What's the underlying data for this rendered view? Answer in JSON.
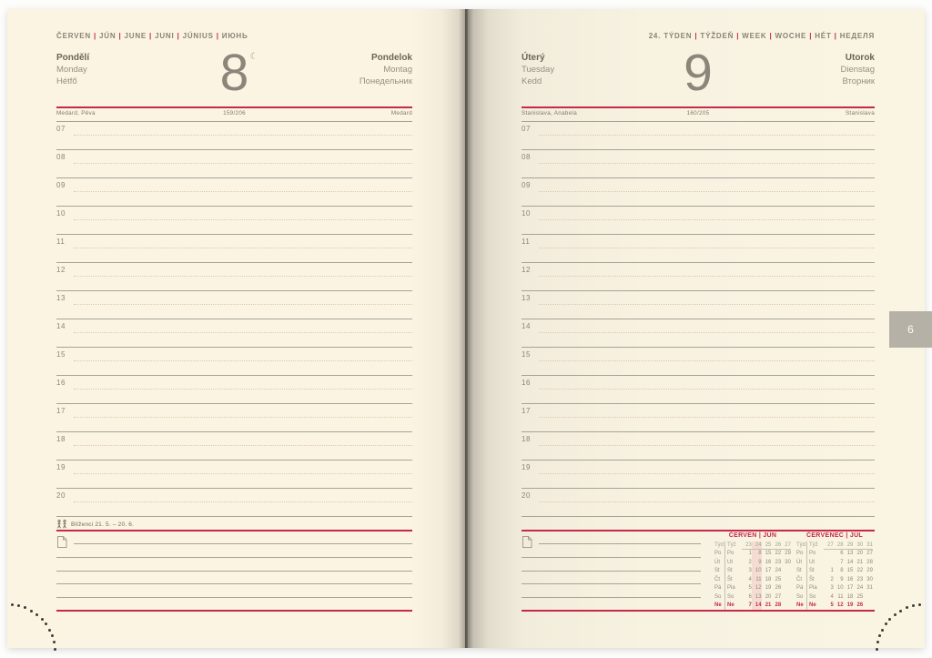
{
  "left_page": {
    "month_header_parts": [
      "ČERVEN",
      "JÚN",
      "JUNE",
      "JUNI",
      "JÚNIUS",
      "ИЮНЬ"
    ],
    "day": {
      "names_left": [
        "Pondělí",
        "Monday",
        "Hétfő"
      ],
      "number": "8",
      "moon_symbol": "☾",
      "names_right": [
        "Pondelok",
        "Montag",
        "Понедельник"
      ]
    },
    "nameday": {
      "left": "Medard, Pěva",
      "center": "159/206",
      "right": "Medard"
    },
    "zodiac": {
      "sign": "gemini",
      "label": "Blíženci 21. 5. – 20. 6."
    }
  },
  "right_page": {
    "week_header_parts": [
      "24. TÝDEN",
      "TÝŽDEŇ",
      "WEEK",
      "WOCHE",
      "HÉT",
      "НЕДЕЛЯ"
    ],
    "day": {
      "names_left": [
        "Úterý",
        "Tuesday",
        "Kedd"
      ],
      "number": "9",
      "names_right": [
        "Utorok",
        "Dienstag",
        "Вторник"
      ]
    },
    "nameday": {
      "left": "Stanislava, Anabela",
      "center": "160/205",
      "right": "Stanislava"
    },
    "calendars": [
      {
        "title_parts": [
          "ČERVEN",
          "JÚN"
        ],
        "highlight_col": 1,
        "rows": [
          {
            "labels": [
              "Týd",
              "Týž"
            ],
            "values": [
              "23",
              "24",
              "25",
              "26",
              "27"
            ]
          },
          {
            "labels": [
              "Po",
              "Po"
            ],
            "values": [
              "1",
              "8",
              "15",
              "22",
              "29"
            ]
          },
          {
            "labels": [
              "Út",
              "Ut"
            ],
            "values": [
              "2",
              "9",
              "16",
              "23",
              "30"
            ]
          },
          {
            "labels": [
              "St",
              "St"
            ],
            "values": [
              "3",
              "10",
              "17",
              "24",
              ""
            ]
          },
          {
            "labels": [
              "Čt",
              "Št"
            ],
            "values": [
              "4",
              "11",
              "18",
              "25",
              ""
            ]
          },
          {
            "labels": [
              "Pá",
              "Pia"
            ],
            "values": [
              "5",
              "12",
              "19",
              "26",
              ""
            ]
          },
          {
            "labels": [
              "So",
              "So"
            ],
            "values": [
              "6",
              "13",
              "20",
              "27",
              ""
            ]
          },
          {
            "labels": [
              "Ne",
              "Ne"
            ],
            "values": [
              "7",
              "14",
              "21",
              "28",
              ""
            ]
          }
        ]
      },
      {
        "title_parts": [
          "ČERVENEC",
          "JÚL"
        ],
        "highlight_col": -1,
        "rows": [
          {
            "labels": [
              "Týd",
              "Týž"
            ],
            "values": [
              "27",
              "28",
              "29",
              "30",
              "31"
            ]
          },
          {
            "labels": [
              "Po",
              "Po"
            ],
            "values": [
              "",
              "6",
              "13",
              "20",
              "27"
            ]
          },
          {
            "labels": [
              "Út",
              "Ut"
            ],
            "values": [
              "",
              "7",
              "14",
              "21",
              "28"
            ]
          },
          {
            "labels": [
              "St",
              "St"
            ],
            "values": [
              "1",
              "8",
              "15",
              "22",
              "29"
            ]
          },
          {
            "labels": [
              "Čt",
              "Št"
            ],
            "values": [
              "2",
              "9",
              "16",
              "23",
              "30"
            ]
          },
          {
            "labels": [
              "Pá",
              "Pia"
            ],
            "values": [
              "3",
              "10",
              "17",
              "24",
              "31"
            ]
          },
          {
            "labels": [
              "So",
              "So"
            ],
            "values": [
              "4",
              "11",
              "18",
              "25",
              ""
            ]
          },
          {
            "labels": [
              "Ne",
              "Ne"
            ],
            "values": [
              "5",
              "12",
              "19",
              "26",
              ""
            ]
          }
        ]
      }
    ]
  },
  "hours": [
    "07",
    "08",
    "09",
    "10",
    "11",
    "12",
    "13",
    "14",
    "15",
    "16",
    "17",
    "18",
    "19",
    "20"
  ],
  "side_tab": {
    "label": "6"
  },
  "colors": {
    "accent_red": "#c32a4c",
    "paper_cream": "#faf4e3",
    "line_gray": "#a9a395",
    "half_line_tan": "#dcc8ad",
    "calendar_highlight": "#f5dcd3",
    "tab_gray": "#b5b1a7"
  }
}
